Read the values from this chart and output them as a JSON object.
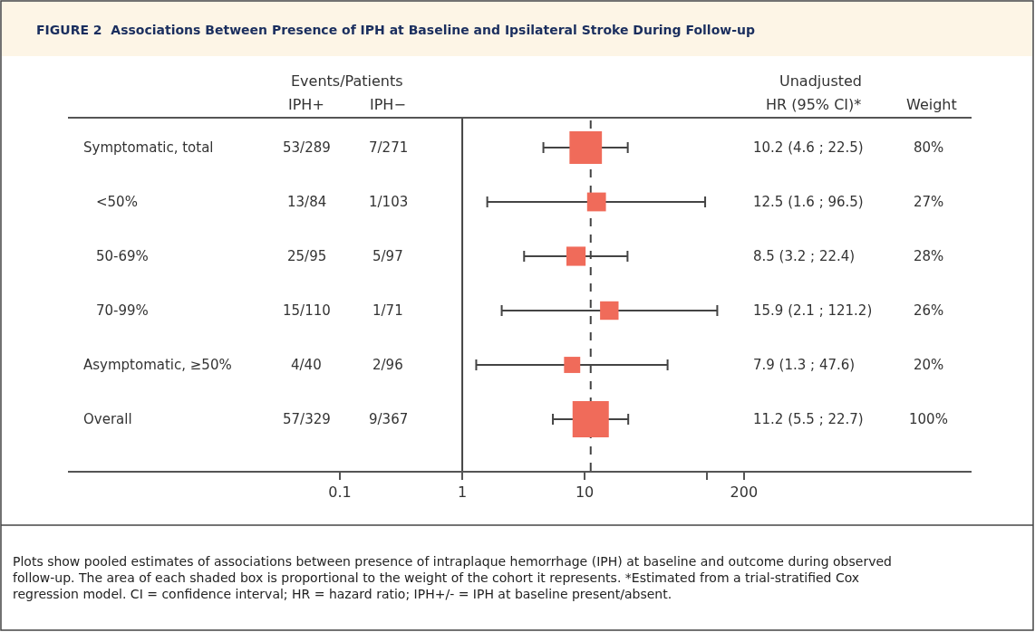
{
  "chart_data": {
    "type": "bubble",
    "orientation": "horizontal",
    "title": "FIGURE 2  Associations Between Presence of IPH at Baseline and Ipsilateral Stroke During Follow-up",
    "categories": [
      "Symptomatic, total",
      "<50%",
      "50-69%",
      "70-99%",
      "Asymptomatic, ≥50%",
      "Overall"
    ],
    "values": [
      10.2,
      12.5,
      8.5,
      15.9,
      7.9,
      11.2
    ],
    "errors": [
      [
        4.6,
        22.5
      ],
      [
        1.6,
        96.5
      ],
      [
        3.2,
        22.4
      ],
      [
        2.1,
        121.2
      ],
      [
        1.3,
        47.6
      ],
      [
        5.5,
        22.7
      ]
    ],
    "sizes": [
      0.8,
      0.27,
      0.28,
      0.26,
      0.2,
      1
    ],
    "color": "#f06b5a",
    "log": "x",
    "xlim": [
      0.0006,
      14500
    ],
    "xticks": [
      0.1,
      1,
      10,
      {
        "value": 100,
        "label": null
      },
      200
    ],
    "marker": "square",
    "grid": false,
    "ref_lines": [
      {
        "axis": "x",
        "value": 1,
        "color": "#444444",
        "line_style": "solid"
      },
      {
        "axis": "x",
        "value": 11.2,
        "color": "#444444",
        "line_style": "dashed"
      }
    ],
    "annotations": [
      "Events/Patients",
      "IPH+",
      "IPH−",
      "Unadjusted",
      "HR (95% CI)*",
      "Weight",
      "53/289",
      "7/271",
      "10.2 (4.6 ; 22.5)",
      "80%",
      "13/84",
      "1/103",
      "12.5 (1.6 ; 96.5)",
      "27%",
      "25/95",
      "5/97",
      "8.5 (3.2 ; 22.4)",
      "28%",
      "15/110",
      "1/71",
      "15.9 (2.1 ; 121.2)",
      "26%",
      "4/40",
      "2/96",
      "7.9 (1.3 ; 47.6)",
      "20%",
      "57/329",
      "9/367",
      "11.2 (5.5 ; 22.7)",
      "100%",
      "Plots show pooled estimates of associations between presence of intraplaque hemorrhage (IPH) at baseline and outcome during observed\nfollow-up. The area of each shaded box is proportional to the weight of the cohort it represents. *Estimated from a trial-stratified Cox\nregression model. CI = confidence interval; HR = hazard ratio; IPH+/- = IPH at baseline present/absent."
    ]
  }
}
